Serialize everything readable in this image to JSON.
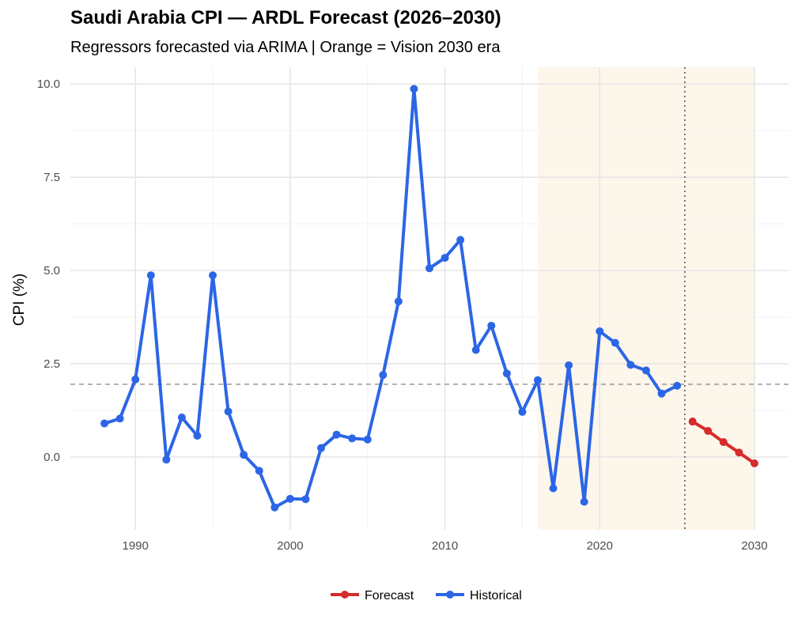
{
  "chart_data": {
    "type": "line",
    "title": "Saudi Arabia CPI — ARDL Forecast (2026–2030)",
    "subtitle": "Regressors forecasted via ARIMA  |  Orange = Vision 2030 era",
    "xlabel": "",
    "ylabel": "CPI (%)",
    "xlim": [
      1985.8,
      2032.2
    ],
    "ylim": [
      -1.95,
      10.45
    ],
    "x_ticks": [
      1990,
      2000,
      2010,
      2020,
      2030
    ],
    "x_tick_labels": [
      "1990",
      "2000",
      "2010",
      "2020",
      "2030"
    ],
    "y_ticks": [
      0,
      2.5,
      5,
      7.5,
      10
    ],
    "y_tick_labels": [
      "0.0",
      "2.5",
      "5.0",
      "7.5",
      "10.0"
    ],
    "grid": true,
    "legend_position": "bottom",
    "shaded_region": {
      "x_start": 2016,
      "x_end": 2030,
      "label": "Vision 2030 era",
      "color": "#fdf6ea"
    },
    "reference_hline": {
      "y": 1.95,
      "style": "dashed",
      "color": "#999999"
    },
    "reference_vline": {
      "x": 2025.5,
      "style": "dotted",
      "color": "#555555"
    },
    "series": [
      {
        "name": "Historical",
        "color": "#2c66e6",
        "x": [
          1988,
          1989,
          1990,
          1991,
          1992,
          1993,
          1994,
          1995,
          1996,
          1997,
          1998,
          1999,
          2000,
          2001,
          2002,
          2003,
          2004,
          2005,
          2006,
          2007,
          2008,
          2009,
          2010,
          2011,
          2012,
          2013,
          2014,
          2015,
          2016,
          2017,
          2018,
          2019,
          2020,
          2021,
          2022,
          2023,
          2024,
          2025
        ],
        "values": [
          0.9,
          1.03,
          2.08,
          4.87,
          -0.07,
          1.06,
          0.57,
          4.87,
          1.22,
          0.06,
          -0.37,
          -1.35,
          -1.12,
          -1.13,
          0.24,
          0.6,
          0.5,
          0.47,
          2.2,
          4.17,
          9.87,
          5.06,
          5.34,
          5.82,
          2.87,
          3.52,
          2.24,
          1.21,
          2.06,
          -0.84,
          2.46,
          -1.2,
          3.37,
          3.06,
          2.47,
          2.32,
          1.7,
          1.91
        ]
      },
      {
        "name": "Forecast",
        "color": "#d62b2b",
        "x": [
          2026,
          2027,
          2028,
          2029,
          2030
        ],
        "values": [
          0.95,
          0.7,
          0.4,
          0.12,
          -0.17
        ]
      }
    ],
    "legend": [
      {
        "name": "Forecast",
        "color": "#d62b2b"
      },
      {
        "name": "Historical",
        "color": "#2c66e6"
      }
    ]
  }
}
